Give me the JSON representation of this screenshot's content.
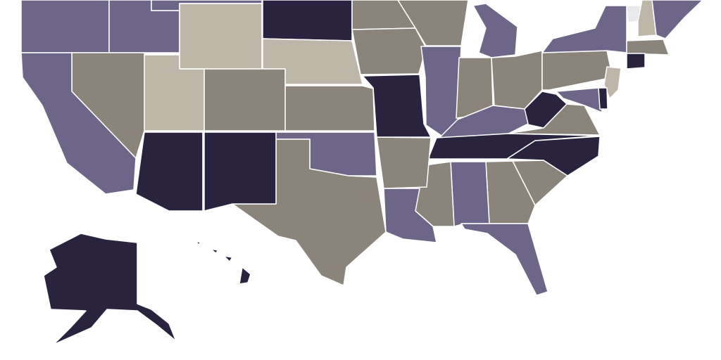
{
  "map": {
    "palette": [
      "#2a2340",
      "#6e6688",
      "#8a847b",
      "#bfb6aa",
      "#e9e8ea"
    ]
  }
}
